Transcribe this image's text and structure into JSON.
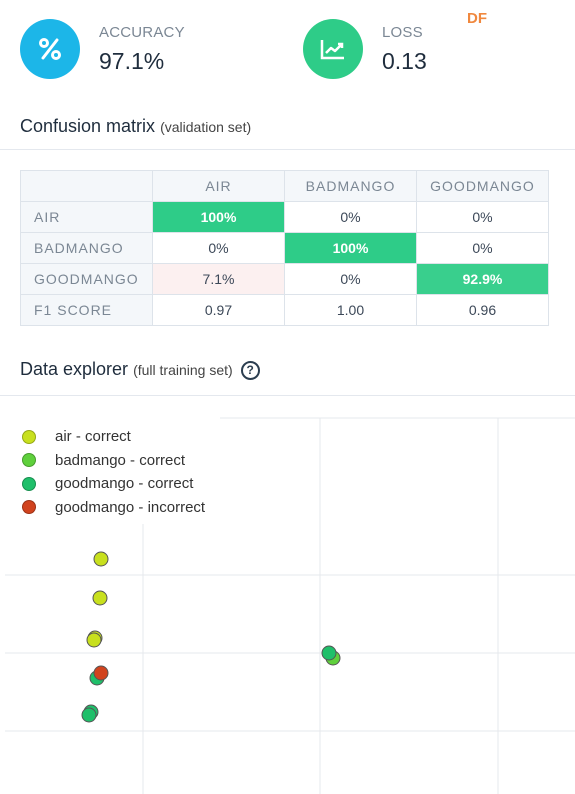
{
  "metrics": {
    "accuracy": {
      "label": "ACCURACY",
      "value": "97.1%",
      "icon": "percent-icon",
      "color": "#1cb6e8"
    },
    "loss": {
      "label": "LOSS",
      "value": "0.13",
      "icon": "chart-line-icon",
      "color": "#2ecc88"
    },
    "badge": "DF"
  },
  "confusion": {
    "title": "Confusion matrix",
    "subtitle": "(validation set)",
    "columns": [
      "AIR",
      "BADMANGO",
      "GOODMANGO"
    ],
    "rows": [
      {
        "label": "AIR",
        "cells": [
          "100%",
          "0%",
          "0%"
        ]
      },
      {
        "label": "BADMANGO",
        "cells": [
          "0%",
          "100%",
          "0%"
        ]
      },
      {
        "label": "GOODMANGO",
        "cells": [
          "7.1%",
          "0%",
          "92.9%"
        ]
      },
      {
        "label": "F1 SCORE",
        "cells": [
          "0.97",
          "1.00",
          "0.96"
        ]
      }
    ]
  },
  "explorer": {
    "title": "Data explorer",
    "subtitle": "(full training set)",
    "legend": [
      {
        "label": "air - correct",
        "color": "#c8e01e"
      },
      {
        "label": "badmango - correct",
        "color": "#5fd03c"
      },
      {
        "label": "goodmango - correct",
        "color": "#1fbf6a"
      },
      {
        "label": "goodmango - incorrect",
        "color": "#d1431e"
      }
    ]
  }
}
